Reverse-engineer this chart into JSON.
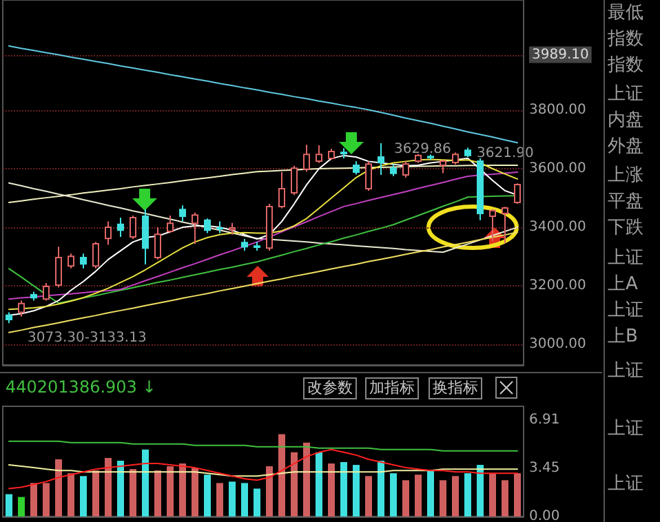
{
  "chart_data": [
    {
      "type": "candlestick",
      "categories": [
        null,
        null,
        null,
        null,
        null,
        null,
        null,
        null,
        null,
        null,
        null,
        null,
        null,
        null,
        null,
        null,
        null,
        null,
        null,
        null,
        null,
        null,
        null,
        null,
        null,
        null,
        null,
        null,
        null,
        null,
        null,
        null,
        null,
        null,
        null,
        null,
        null,
        null,
        null,
        null,
        null,
        null
      ],
      "ohlc": [
        [
          3100,
          3110,
          3073,
          3085
        ],
        [
          3110,
          3150,
          3095,
          3140
        ],
        [
          3170,
          3180,
          3150,
          3160
        ],
        [
          3155,
          3210,
          3150,
          3198
        ],
        [
          3203,
          3334,
          3195,
          3297
        ],
        [
          3268,
          3310,
          3260,
          3301
        ],
        [
          3297,
          3310,
          3260,
          3275
        ],
        [
          3268,
          3350,
          3260,
          3344
        ],
        [
          3362,
          3420,
          3340,
          3400
        ],
        [
          3410,
          3433,
          3367,
          3390
        ],
        [
          3367,
          3440,
          3360,
          3433
        ],
        [
          3438,
          3461,
          3273,
          3329
        ],
        [
          3297,
          3400,
          3290,
          3376
        ],
        [
          3386,
          3440,
          3380,
          3414
        ],
        [
          3461,
          3475,
          3420,
          3438
        ],
        [
          3414,
          3450,
          3344,
          3442
        ],
        [
          3424,
          3430,
          3380,
          3390
        ],
        [
          3398,
          3420,
          3380,
          3395
        ],
        [
          3392,
          3415,
          3375,
          3398
        ],
        [
          3348,
          3360,
          3320,
          3334
        ],
        [
          3336,
          3350,
          3320,
          3332
        ],
        [
          3329,
          3480,
          3320,
          3471
        ],
        [
          3471,
          3588,
          3465,
          3532
        ],
        [
          3518,
          3610,
          3510,
          3602
        ],
        [
          3598,
          3682,
          3590,
          3649
        ],
        [
          3626,
          3680,
          3620,
          3649
        ],
        [
          3635,
          3668,
          3630,
          3659
        ],
        [
          3656,
          3670,
          3635,
          3652
        ],
        [
          3612,
          3625,
          3580,
          3588
        ],
        [
          3532,
          3625,
          3525,
          3616
        ],
        [
          3640,
          3687,
          3579,
          3621
        ],
        [
          3602,
          3615,
          3575,
          3584
        ],
        [
          3579,
          3625,
          3570,
          3616
        ],
        [
          3626,
          3650,
          3620,
          3645
        ],
        [
          3642,
          3648,
          3630,
          3638
        ],
        [
          3612,
          3630,
          3585,
          3626
        ],
        [
          3621,
          3655,
          3615,
          3649
        ],
        [
          3663,
          3672,
          3640,
          3645
        ],
        [
          3626,
          3635,
          3424,
          3447
        ],
        [
          3438,
          3462,
          3353,
          3457
        ],
        [
          3447,
          3470,
          3345,
          3466
        ],
        [
          3485,
          3550,
          3480,
          3546
        ]
      ],
      "colors": [
        "#40e0e0",
        "#e06666",
        "#40e0e0",
        "#e06666",
        "#e06666",
        "#e06666",
        "#40e0e0",
        "#e06666",
        "#e06666",
        "#40e0e0",
        "#e06666",
        "#40e0e0",
        "#e06666",
        "#e06666",
        "#40e0e0",
        "#e06666",
        "#40e0e0",
        "#40e0e0",
        "#e06666",
        "#40e0e0",
        "#40e0e0",
        "#e06666",
        "#e06666",
        "#e06666",
        "#e06666",
        "#e06666",
        "#e06666",
        "#40e0e0",
        "#40e0e0",
        "#e06666",
        "#40e0e0",
        "#40e0e0",
        "#e06666",
        "#e06666",
        "#40e0e0",
        "#e06666",
        "#e06666",
        "#40e0e0",
        "#40e0e0",
        "#e06666",
        "#e06666",
        "#e06666"
      ],
      "series": [
        {
          "type": "line",
          "color": "#5fc8e0",
          "values": [
            4019,
            4011,
            4004,
            3996,
            3989,
            3981,
            3974,
            3966,
            3959,
            3951,
            3944,
            3936,
            3929,
            3921,
            3914,
            3906,
            3899,
            3891,
            3884,
            3876,
            3869,
            3861,
            3854,
            3846,
            3839,
            3831,
            3824,
            3816,
            3809,
            3801,
            3792,
            3783,
            3773,
            3764,
            3755,
            3745,
            3736,
            3726,
            3717,
            3708,
            3698,
            3689
          ]
        },
        {
          "type": "line",
          "color": "#f0f0c0",
          "values": [
            3485,
            3490,
            3496,
            3501,
            3506,
            3511,
            3517,
            3522,
            3527,
            3532,
            3538,
            3543,
            3548,
            3553,
            3559,
            3564,
            3569,
            3574,
            3580,
            3585,
            3590,
            3592,
            3594,
            3596,
            3598,
            3600,
            3601,
            3602,
            3603,
            3604,
            3605,
            3606,
            3607,
            3608,
            3609,
            3610,
            3610,
            3611,
            3611,
            3612,
            3612,
            3612
          ]
        },
        {
          "type": "line",
          "color": "#e8e8d0",
          "values": [
            3551,
            3542,
            3532,
            3523,
            3513,
            3504,
            3494,
            3485,
            3475,
            3466,
            3456,
            3447,
            3437,
            3428,
            3418,
            3409,
            3399,
            3390,
            3381,
            3371,
            3362,
            3359,
            3356,
            3353,
            3350,
            3346,
            3343,
            3340,
            3337,
            3334,
            3331,
            3328,
            3324,
            3321,
            3318,
            3315,
            3329,
            3343,
            3357,
            3372,
            3386,
            3400
          ]
        },
        {
          "type": "line",
          "color": "#f0e060",
          "values": [
            3041,
            3049,
            3058,
            3066,
            3074,
            3083,
            3091,
            3099,
            3108,
            3116,
            3124,
            3133,
            3141,
            3149,
            3158,
            3166,
            3174,
            3183,
            3191,
            3199,
            3208,
            3216,
            3224,
            3233,
            3241,
            3249,
            3258,
            3266,
            3274,
            3283,
            3291,
            3299,
            3308,
            3316,
            3324,
            3333,
            3341,
            3349,
            3358,
            3366,
            3374,
            3383
          ]
        },
        {
          "type": "line",
          "color": "#40c040",
          "values": [
            3259,
            3230,
            3200,
            3170,
            3141,
            3150,
            3159,
            3167,
            3176,
            3185,
            3194,
            3203,
            3212,
            3220,
            3229,
            3238,
            3247,
            3256,
            3264,
            3273,
            3282,
            3294,
            3305,
            3317,
            3328,
            3340,
            3351,
            3363,
            3374,
            3386,
            3397,
            3409,
            3425,
            3440,
            3456,
            3472,
            3487,
            3503,
            3505,
            3506,
            3507,
            3508
          ]
        },
        {
          "type": "line",
          "color": "#c040c0",
          "values": [
            3155,
            3159,
            3162,
            3166,
            3170,
            3173,
            3177,
            3181,
            3184,
            3188,
            3203,
            3218,
            3232,
            3247,
            3262,
            3276,
            3291,
            3306,
            3320,
            3335,
            3350,
            3367,
            3385,
            3402,
            3419,
            3437,
            3454,
            3471,
            3481,
            3492,
            3502,
            3512,
            3522,
            3533,
            3543,
            3553,
            3564,
            3574,
            3578,
            3581,
            3585,
            3588
          ]
        },
        {
          "type": "line",
          "color": "#ffffff",
          "values": [
            3100,
            3105,
            3115,
            3130,
            3150,
            3185,
            3215,
            3250,
            3290,
            3320,
            3350,
            3365,
            3370,
            3385,
            3400,
            3405,
            3405,
            3400,
            3390,
            3375,
            3360,
            3375,
            3420,
            3480,
            3545,
            3600,
            3635,
            3645,
            3640,
            3625,
            3620,
            3615,
            3610,
            3612,
            3620,
            3625,
            3630,
            3636,
            3598,
            3560,
            3525,
            3510
          ]
        },
        {
          "type": "line",
          "color": "#e8e040",
          "values": [
            3120,
            3122,
            3125,
            3130,
            3138,
            3148,
            3160,
            3175,
            3192,
            3212,
            3232,
            3255,
            3280,
            3305,
            3330,
            3350,
            3365,
            3375,
            3380,
            3382,
            3380,
            3380,
            3388,
            3405,
            3430,
            3465,
            3500,
            3535,
            3570,
            3595,
            3610,
            3620,
            3625,
            3630,
            3632,
            3630,
            3628,
            3630,
            3620,
            3600,
            3582,
            3565
          ]
        }
      ],
      "ylim": [
        2930,
        4176
      ],
      "yticks": [
        {
          "value": 3000,
          "label": "3000.00"
        },
        {
          "value": 3200,
          "label": "3200.00"
        },
        {
          "value": 3400,
          "label": "3400.00"
        },
        {
          "value": 3600,
          "label": "3600.00"
        },
        {
          "value": 3800,
          "label": "3800.00"
        },
        {
          "value": 3989.1,
          "label": "3989.10"
        }
      ],
      "grid": "y",
      "tick_labels": "y",
      "marker": "none",
      "line_style": "solid",
      "annotations": [
        "3629.86",
        "3621.90",
        "3073.30-3133.13"
      ]
    },
    {
      "type": "bar",
      "categories": [
        null,
        null,
        null,
        null,
        null,
        null,
        null,
        null,
        null,
        null,
        null,
        null,
        null,
        null,
        null,
        null,
        null,
        null,
        null,
        null,
        null,
        null,
        null,
        null,
        null,
        null,
        null,
        null,
        null,
        null,
        null,
        null,
        null,
        null,
        null,
        null,
        null,
        null,
        null,
        null,
        null,
        null
      ],
      "series": [
        {
          "type": "bar",
          "values": [
            1.6,
            1.4,
            2.4,
            2.4,
            4.1,
            3.1,
            2.9,
            3.3,
            4.2,
            4.0,
            3.4,
            4.8,
            3.3,
            3.6,
            3.8,
            3.5,
            3.0,
            2.4,
            2.5,
            2.4,
            2.0,
            3.6,
            5.9,
            4.6,
            5.3,
            4.6,
            3.8,
            3.9,
            3.7,
            2.9,
            4.0,
            3.1,
            2.6,
            3.0,
            3.3,
            2.6,
            2.9,
            3.1,
            3.7,
            3.1,
            2.6,
            3.1
          ],
          "colors": [
            "#40e0e0",
            "#30d030",
            "#d06060",
            "#d06060",
            "#d06060",
            "#d06060",
            "#40e0e0",
            "#d06060",
            "#d06060",
            "#40e0e0",
            "#d06060",
            "#40e0e0",
            "#d06060",
            "#d06060",
            "#d06060",
            "#d06060",
            "#40e0e0",
            "#d06060",
            "#40e0e0",
            "#40e0e0",
            "#40e0e0",
            "#d06060",
            "#d06060",
            "#d06060",
            "#d06060",
            "#40e0e0",
            "#d06060",
            "#40e0e0",
            "#40e0e0",
            "#d06060",
            "#40e0e0",
            "#40e0e0",
            "#d06060",
            "#d06060",
            "#40e0e0",
            "#d06060",
            "#d06060",
            "#40e0e0",
            "#40e0e0",
            "#d06060",
            "#d06060",
            "#d06060"
          ]
        },
        {
          "type": "line",
          "color": "#40c040",
          "values": [
            5.4,
            5.4,
            5.4,
            5.4,
            5.4,
            5.3,
            5.3,
            5.3,
            5.3,
            5.3,
            5.2,
            5.2,
            5.2,
            5.2,
            5.2,
            5.1,
            5.1,
            5.1,
            5.1,
            5.1,
            5.0,
            5.0,
            5.0,
            5.0,
            5.0,
            4.9,
            4.9,
            4.9,
            4.9,
            4.9,
            4.8,
            4.8,
            4.8,
            4.8,
            4.8,
            4.7,
            4.7,
            4.7,
            4.7,
            4.7,
            4.7,
            4.7
          ]
        },
        {
          "type": "line",
          "color": "#f0f0a0",
          "values": [
            3.7,
            3.6,
            3.5,
            3.4,
            3.3,
            3.3,
            3.2,
            3.2,
            3.2,
            3.2,
            3.2,
            3.2,
            3.2,
            3.2,
            3.2,
            3.2,
            3.1,
            3.0,
            2.9,
            2.9,
            2.9,
            3.0,
            3.1,
            3.2,
            3.2,
            3.2,
            3.2,
            3.2,
            3.2,
            3.2,
            3.2,
            3.3,
            3.3,
            3.3,
            3.3,
            3.4,
            3.4,
            3.4,
            3.4,
            3.4,
            3.4,
            3.4
          ]
        },
        {
          "type": "line",
          "color": "#ff2020",
          "values": [
            2.0,
            2.1,
            2.3,
            2.5,
            2.8,
            3.0,
            3.2,
            3.4,
            3.5,
            3.6,
            3.7,
            3.8,
            3.8,
            3.7,
            3.6,
            3.5,
            3.3,
            3.1,
            2.9,
            2.7,
            2.6,
            2.8,
            3.3,
            3.8,
            4.3,
            4.6,
            4.8,
            4.6,
            4.4,
            4.1,
            3.9,
            3.7,
            3.5,
            3.4,
            3.3,
            3.3,
            3.2,
            3.2,
            3.1,
            3.1,
            3.1,
            3.1
          ]
        }
      ],
      "ylim": [
        0,
        7.9
      ],
      "yticks": [
        {
          "value": 0,
          "label": "0.00"
        },
        {
          "value": 3.45,
          "label": "3.45"
        },
        {
          "value": 6.91,
          "label": "6.91"
        }
      ],
      "tick_labels": "y",
      "marker": "none",
      "annotations": [
        "440201386.903 ↓",
        "改参数",
        "加指标",
        "换指标"
      ]
    },
    {
      "type": "other",
      "annotations": [
        "最低",
        "指数",
        "指数",
        "上证",
        "内盘",
        "外盘",
        "上涨",
        "平盘",
        "下跌",
        "上证",
        "上A",
        "上证",
        "上B",
        "上证",
        "上证",
        "上证"
      ]
    }
  ]
}
